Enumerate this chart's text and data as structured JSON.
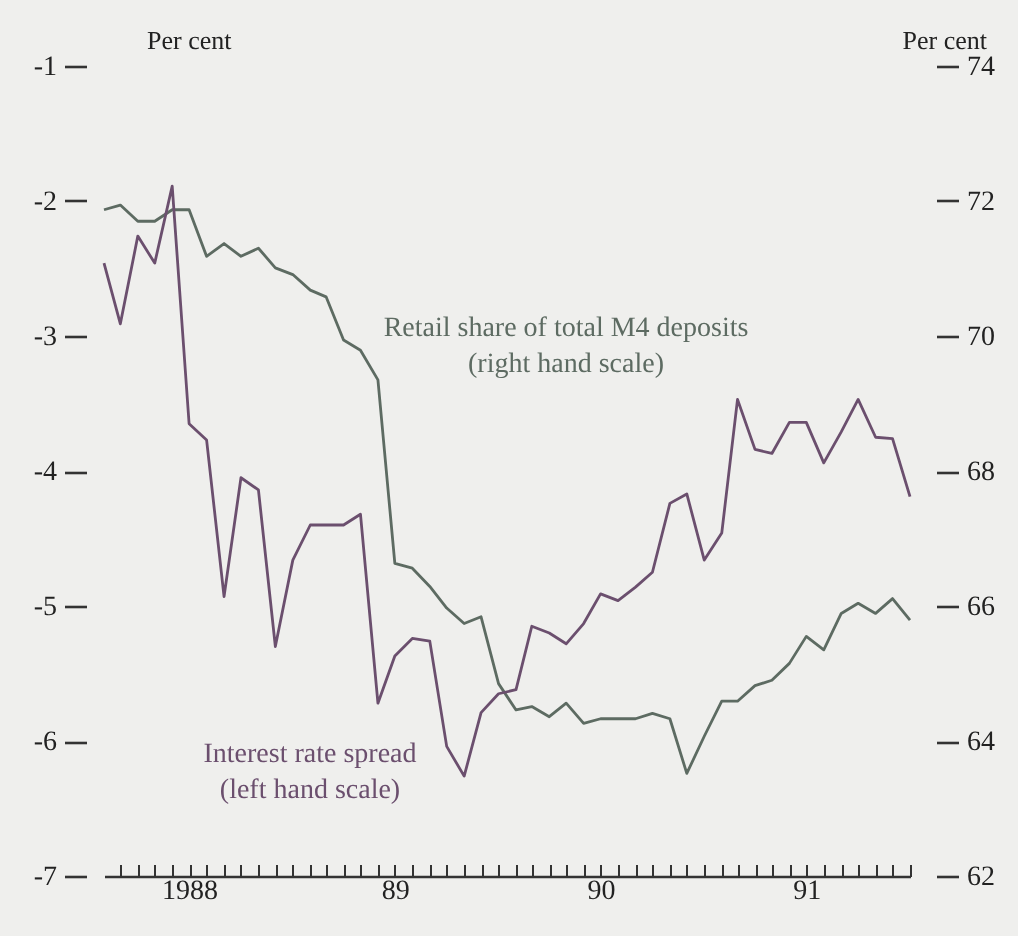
{
  "chart_data": {
    "type": "line",
    "ylabel": "Per cent",
    "y2label": "Per cent",
    "x": [
      "1988-02",
      "1988-03",
      "1988-04",
      "1988-05",
      "1988-06",
      "1988-07",
      "1988-08",
      "1988-09",
      "1988-10",
      "1988-11",
      "1988-12",
      "1989-01",
      "1989-02",
      "1989-03",
      "1989-04",
      "1989-05",
      "1989-06",
      "1989-07",
      "1989-08",
      "1989-09",
      "1989-10",
      "1989-11",
      "1989-12",
      "1990-01",
      "1990-02",
      "1990-03",
      "1990-04",
      "1990-05",
      "1990-06",
      "1990-07",
      "1990-08",
      "1990-09",
      "1990-10",
      "1990-11",
      "1990-12",
      "1991-01",
      "1991-02",
      "1991-03",
      "1991-04",
      "1991-05",
      "1991-06",
      "1991-07",
      "1991-08",
      "1991-09",
      "1991-10",
      "1991-11",
      "1991-12",
      "1992-01"
    ],
    "series": [
      {
        "name": "Retail share of total M4 deposits (right hand scale)",
        "color": "#5d6b62",
        "axis": "y2",
        "values": [
          71.87,
          71.94,
          71.7,
          71.7,
          71.87,
          71.87,
          71.18,
          71.37,
          71.18,
          71.3,
          71.01,
          70.91,
          70.68,
          70.58,
          69.94,
          69.79,
          69.35,
          66.63,
          66.56,
          66.29,
          65.97,
          65.74,
          65.84,
          64.85,
          64.46,
          64.51,
          64.36,
          64.56,
          64.26,
          64.33,
          64.33,
          64.33,
          64.41,
          64.33,
          63.52,
          64.07,
          64.59,
          64.59,
          64.82,
          64.9,
          65.15,
          65.55,
          65.35,
          65.89,
          66.04,
          65.89,
          66.11,
          65.79
        ]
      },
      {
        "name": "Interest rate spread (left hand scale)",
        "color": "#6b4f6e",
        "values": [
          -2.46,
          -2.91,
          -2.26,
          -2.46,
          -1.89,
          -3.65,
          -3.77,
          -4.93,
          -4.05,
          -4.14,
          -5.3,
          -4.66,
          -4.4,
          -4.4,
          -4.4,
          -4.32,
          -5.72,
          -5.37,
          -5.24,
          -5.26,
          -6.04,
          -6.26,
          -5.79,
          -5.65,
          -5.62,
          -5.15,
          -5.2,
          -5.28,
          -5.13,
          -4.91,
          -4.96,
          -4.86,
          -4.75,
          -4.24,
          -4.17,
          -4.66,
          -4.46,
          -3.47,
          -3.84,
          -3.87,
          -3.64,
          -3.64,
          -3.94,
          -3.71,
          -3.47,
          -3.75,
          -3.76,
          -4.19
        ]
      }
    ],
    "xlim": [
      "1988-02",
      "1992-01"
    ],
    "xticks": [
      {
        "value": "1988-03",
        "label": null
      },
      {
        "value": "1988-04",
        "label": null
      },
      {
        "value": "1988-05",
        "label": null
      },
      {
        "value": "1988-06",
        "label": null
      },
      {
        "value": "1988-07",
        "label": "1988"
      },
      {
        "value": "1988-08",
        "label": null
      },
      {
        "value": "1988-09",
        "label": null
      },
      {
        "value": "1988-10",
        "label": null
      },
      {
        "value": "1988-11",
        "label": null
      },
      {
        "value": "1988-12",
        "label": null
      },
      {
        "value": "1989-01",
        "label": null
      },
      {
        "value": "1989-02",
        "label": null
      },
      {
        "value": "1989-03",
        "label": null
      },
      {
        "value": "1989-04",
        "label": null
      },
      {
        "value": "1989-05",
        "label": null
      },
      {
        "value": "1989-06",
        "label": null
      },
      {
        "value": "1989-07",
        "label": "89"
      },
      {
        "value": "1989-08",
        "label": null
      },
      {
        "value": "1989-09",
        "label": null
      },
      {
        "value": "1989-10",
        "label": null
      },
      {
        "value": "1989-11",
        "label": null
      },
      {
        "value": "1989-12",
        "label": null
      },
      {
        "value": "1990-01",
        "label": null
      },
      {
        "value": "1990-02",
        "label": null
      },
      {
        "value": "1990-03",
        "label": null
      },
      {
        "value": "1990-04",
        "label": null
      },
      {
        "value": "1990-05",
        "label": null
      },
      {
        "value": "1990-06",
        "label": null
      },
      {
        "value": "1990-07",
        "label": "90"
      },
      {
        "value": "1990-08",
        "label": null
      },
      {
        "value": "1990-09",
        "label": null
      },
      {
        "value": "1990-10",
        "label": null
      },
      {
        "value": "1990-11",
        "label": null
      },
      {
        "value": "1990-12",
        "label": null
      },
      {
        "value": "1991-01",
        "label": null
      },
      {
        "value": "1991-02",
        "label": null
      },
      {
        "value": "1991-03",
        "label": null
      },
      {
        "value": "1991-04",
        "label": null
      },
      {
        "value": "1991-05",
        "label": null
      },
      {
        "value": "1991-06",
        "label": null
      },
      {
        "value": "1991-07",
        "label": "91"
      },
      {
        "value": "1991-08",
        "label": null
      },
      {
        "value": "1991-09",
        "label": null
      },
      {
        "value": "1991-10",
        "label": null
      },
      {
        "value": "1991-11",
        "label": null
      },
      {
        "value": "1991-12",
        "label": null
      },
      {
        "value": "1992-01",
        "label": null
      }
    ],
    "ylim": [
      -7,
      -1
    ],
    "yticks": [
      -7,
      -6,
      -5,
      -4,
      -3,
      -2,
      -1
    ],
    "y2lim": [
      62,
      74
    ],
    "y2ticks": [
      62,
      64,
      66,
      68,
      70,
      72,
      74
    ],
    "grid": false,
    "legend": false,
    "marker": "none",
    "line_style": "solid"
  }
}
